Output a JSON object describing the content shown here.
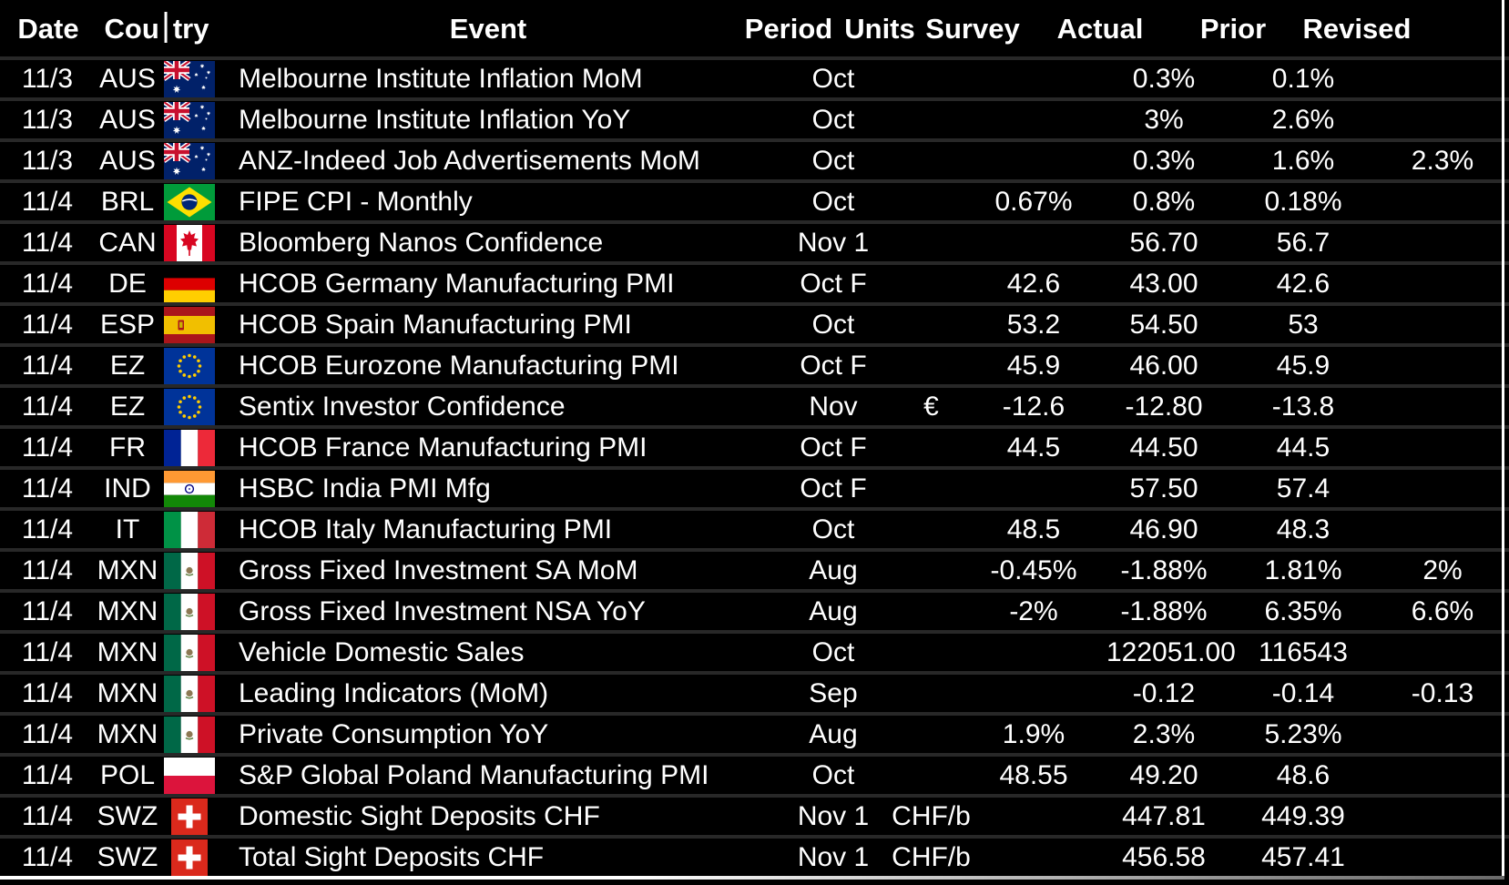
{
  "header": {
    "date": "Date",
    "country": "Country",
    "country_left": "Cou",
    "country_right": "try",
    "event": "Event",
    "period": "Period",
    "units": "Units",
    "survey": "Survey",
    "actual": "Actual",
    "prior": "Prior",
    "revised": "Revised"
  },
  "rows": [
    {
      "date": "11/3",
      "country": "AUS",
      "flag": "australia-flag",
      "event": "Melbourne Institute Inflation MoM",
      "period": "Oct",
      "units": "",
      "survey": "",
      "actual": "0.3%",
      "prior": "0.1%",
      "revised": ""
    },
    {
      "date": "11/3",
      "country": "AUS",
      "flag": "australia-flag",
      "event": "Melbourne Institute Inflation YoY",
      "period": "Oct",
      "units": "",
      "survey": "",
      "actual": "3%",
      "prior": "2.6%",
      "revised": ""
    },
    {
      "date": "11/3",
      "country": "AUS",
      "flag": "australia-flag",
      "event": "ANZ-Indeed Job Advertisements MoM",
      "period": "Oct",
      "units": "",
      "survey": "",
      "actual": "0.3%",
      "prior": "1.6%",
      "revised": "2.3%"
    },
    {
      "date": "11/4",
      "country": "BRL",
      "flag": "brazil-flag",
      "event": "FIPE CPI - Monthly",
      "period": "Oct",
      "units": "",
      "survey": "0.67%",
      "actual": "0.8%",
      "prior": "0.18%",
      "revised": ""
    },
    {
      "date": "11/4",
      "country": "CAN",
      "flag": "canada-flag",
      "event": "Bloomberg Nanos Confidence",
      "period": "Nov 1",
      "units": "",
      "survey": "",
      "actual": "56.70",
      "prior": "56.7",
      "revised": ""
    },
    {
      "date": "11/4",
      "country": "DE",
      "flag": "germany-flag",
      "event": "HCOB Germany Manufacturing PMI",
      "period": "Oct F",
      "units": "",
      "survey": "42.6",
      "actual": "43.00",
      "prior": "42.6",
      "revised": ""
    },
    {
      "date": "11/4",
      "country": "ESP",
      "flag": "spain-flag",
      "event": "HCOB Spain Manufacturing PMI",
      "period": "Oct",
      "units": "",
      "survey": "53.2",
      "actual": "54.50",
      "prior": "53",
      "revised": ""
    },
    {
      "date": "11/4",
      "country": "EZ",
      "flag": "eu-flag",
      "event": "HCOB Eurozone Manufacturing PMI",
      "period": "Oct F",
      "units": "",
      "survey": "45.9",
      "actual": "46.00",
      "prior": "45.9",
      "revised": ""
    },
    {
      "date": "11/4",
      "country": "EZ",
      "flag": "eu-flag",
      "event": "Sentix Investor Confidence",
      "period": "Nov",
      "units": "€",
      "survey": "-12.6",
      "actual": "-12.80",
      "prior": "-13.8",
      "revised": ""
    },
    {
      "date": "11/4",
      "country": "FR",
      "flag": "france-flag",
      "event": "HCOB France Manufacturing PMI",
      "period": "Oct F",
      "units": "",
      "survey": "44.5",
      "actual": "44.50",
      "prior": "44.5",
      "revised": ""
    },
    {
      "date": "11/4",
      "country": "IND",
      "flag": "india-flag",
      "event": "HSBC India PMI Mfg",
      "period": "Oct F",
      "units": "",
      "survey": "",
      "actual": "57.50",
      "prior": "57.4",
      "revised": ""
    },
    {
      "date": "11/4",
      "country": "IT",
      "flag": "italy-flag",
      "event": "HCOB Italy Manufacturing PMI",
      "period": "Oct",
      "units": "",
      "survey": "48.5",
      "actual": "46.90",
      "prior": "48.3",
      "revised": ""
    },
    {
      "date": "11/4",
      "country": "MXN",
      "flag": "mexico-flag",
      "event": "Gross Fixed Investment SA MoM",
      "period": "Aug",
      "units": "",
      "survey": "-0.45%",
      "actual": "-1.88%",
      "prior": "1.81%",
      "revised": "2%"
    },
    {
      "date": "11/4",
      "country": "MXN",
      "flag": "mexico-flag",
      "event": "Gross Fixed Investment NSA YoY",
      "period": "Aug",
      "units": "",
      "survey": "-2%",
      "actual": "-1.88%",
      "prior": "6.35%",
      "revised": "6.6%"
    },
    {
      "date": "11/4",
      "country": "MXN",
      "flag": "mexico-flag",
      "event": "Vehicle Domestic Sales",
      "period": "Oct",
      "units": "",
      "survey": "",
      "actual": "122051.00",
      "prior": "116543",
      "revised": ""
    },
    {
      "date": "11/4",
      "country": "MXN",
      "flag": "mexico-flag",
      "event": "Leading Indicators (MoM)",
      "period": "Sep",
      "units": "",
      "survey": "",
      "actual": "-0.12",
      "prior": "-0.14",
      "revised": "-0.13"
    },
    {
      "date": "11/4",
      "country": "MXN",
      "flag": "mexico-flag",
      "event": "Private Consumption YoY",
      "period": "Aug",
      "units": "",
      "survey": "1.9%",
      "actual": "2.3%",
      "prior": "5.23%",
      "revised": ""
    },
    {
      "date": "11/4",
      "country": "POL",
      "flag": "poland-flag",
      "event": "S&P Global Poland Manufacturing PMI",
      "period": "Oct",
      "units": "",
      "survey": "48.55",
      "actual": "49.20",
      "prior": "48.6",
      "revised": ""
    },
    {
      "date": "11/4",
      "country": "SWZ",
      "flag": "switzerland-flag",
      "event": "Domestic Sight Deposits CHF",
      "period": "Nov 1",
      "units": "CHF/b",
      "survey": "",
      "actual": "447.81",
      "prior": "449.39",
      "revised": ""
    },
    {
      "date": "11/4",
      "country": "SWZ",
      "flag": "switzerland-flag",
      "event": "Total Sight Deposits CHF",
      "period": "Nov 1",
      "units": "CHF/b",
      "survey": "",
      "actual": "456.58",
      "prior": "457.41",
      "revised": ""
    }
  ],
  "colors": {
    "background": "#000000",
    "text": "#ffffff",
    "row_separator": "#282828",
    "grid_border": "#ffffff"
  }
}
